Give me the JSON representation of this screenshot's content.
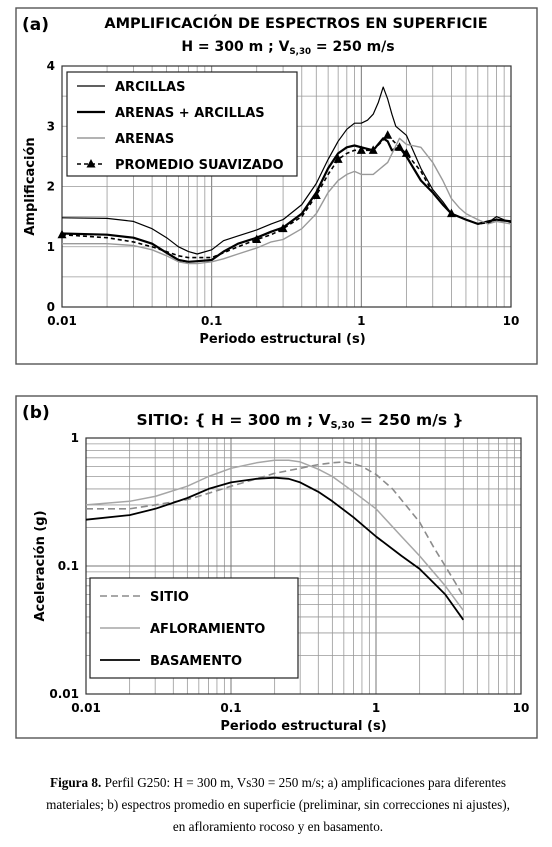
{
  "chart_data": [
    {
      "type": "line",
      "panel_label": "(a)",
      "title": "AMPLIFICACIÓN DE ESPECTROS EN SUPERFICIE",
      "subtitle": "H = 300 m ; Vs,30 = 250 m/s",
      "subtitle_parts": {
        "lead": "H = 300 m  ;  V",
        "sub": "S,30",
        "tail": " =  250 m/s"
      },
      "xlabel": "Periodo estructural (s)",
      "ylabel": "Amplificación",
      "xscale": "log",
      "xlim": [
        0.01,
        10
      ],
      "ylim": [
        0,
        4
      ],
      "xticks": [
        {
          "v": 0.01,
          "label": "0.01"
        },
        {
          "v": 0.1,
          "label": "0.1"
        },
        {
          "v": 1,
          "label": "1"
        },
        {
          "v": 10,
          "label": "10"
        }
      ],
      "yticks": [
        {
          "v": 0,
          "label": "0"
        },
        {
          "v": 1,
          "label": "1"
        },
        {
          "v": 2,
          "label": "2"
        },
        {
          "v": 3,
          "label": "3"
        },
        {
          "v": 4,
          "label": "4"
        }
      ],
      "grid": true,
      "legend_position": "top-left",
      "series": [
        {
          "name": "ARCILLAS",
          "color": "#000000",
          "width": 1.2,
          "dash": "",
          "marker": "none",
          "x": [
            0.01,
            0.02,
            0.03,
            0.04,
            0.05,
            0.06,
            0.07,
            0.08,
            0.1,
            0.12,
            0.15,
            0.2,
            0.25,
            0.3,
            0.4,
            0.5,
            0.6,
            0.7,
            0.8,
            0.9,
            1.0,
            1.1,
            1.2,
            1.3,
            1.4,
            1.5,
            1.6,
            1.7,
            2.0,
            2.5,
            3.0,
            3.5,
            4.0,
            5.0,
            6.0,
            7.0,
            8.0,
            10.0
          ],
          "y": [
            1.48,
            1.47,
            1.42,
            1.3,
            1.15,
            1.0,
            0.92,
            0.88,
            0.95,
            1.1,
            1.18,
            1.28,
            1.38,
            1.45,
            1.7,
            2.05,
            2.45,
            2.75,
            2.95,
            3.05,
            3.05,
            3.1,
            3.2,
            3.4,
            3.65,
            3.45,
            3.2,
            3.0,
            2.85,
            2.3,
            1.95,
            1.75,
            1.55,
            1.45,
            1.38,
            1.4,
            1.5,
            1.4
          ]
        },
        {
          "name": "ARENAS + ARCILLAS",
          "color": "#000000",
          "width": 2.2,
          "dash": "",
          "marker": "none",
          "x": [
            0.01,
            0.02,
            0.03,
            0.04,
            0.05,
            0.06,
            0.07,
            0.08,
            0.1,
            0.12,
            0.15,
            0.2,
            0.25,
            0.3,
            0.4,
            0.5,
            0.6,
            0.7,
            0.8,
            0.9,
            1.0,
            1.2,
            1.4,
            1.5,
            1.6,
            1.8,
            2.0,
            2.5,
            3.0,
            3.5,
            4.0,
            5.0,
            6.0,
            7.0,
            8.0,
            10.0
          ],
          "y": [
            1.22,
            1.2,
            1.15,
            1.05,
            0.9,
            0.78,
            0.75,
            0.76,
            0.78,
            0.92,
            1.05,
            1.15,
            1.25,
            1.32,
            1.55,
            1.9,
            2.3,
            2.55,
            2.65,
            2.68,
            2.65,
            2.6,
            2.8,
            2.75,
            2.6,
            2.65,
            2.5,
            2.1,
            1.9,
            1.7,
            1.55,
            1.45,
            1.38,
            1.42,
            1.45,
            1.42
          ]
        },
        {
          "name": "ARENAS",
          "color": "#9a9a9a",
          "width": 1.4,
          "dash": "",
          "marker": "none",
          "x": [
            0.01,
            0.02,
            0.03,
            0.04,
            0.05,
            0.06,
            0.07,
            0.08,
            0.1,
            0.12,
            0.15,
            0.2,
            0.25,
            0.3,
            0.4,
            0.5,
            0.6,
            0.7,
            0.8,
            0.9,
            1.0,
            1.2,
            1.5,
            1.8,
            2.0,
            2.5,
            3.0,
            3.5,
            4.0,
            4.5,
            5.0,
            6.0,
            7.0,
            8.0,
            10.0
          ],
          "y": [
            1.05,
            1.05,
            1.02,
            0.95,
            0.85,
            0.75,
            0.72,
            0.72,
            0.75,
            0.8,
            0.88,
            0.98,
            1.08,
            1.12,
            1.3,
            1.55,
            1.9,
            2.1,
            2.2,
            2.25,
            2.2,
            2.2,
            2.4,
            2.8,
            2.7,
            2.65,
            2.4,
            2.1,
            1.8,
            1.65,
            1.55,
            1.45,
            1.38,
            1.42,
            1.38
          ]
        },
        {
          "name": "PROMEDIO SUAVIZADO",
          "color": "#000000",
          "width": 1.6,
          "dash": "4,3",
          "marker": "triangle",
          "x": [
            0.01,
            0.02,
            0.03,
            0.04,
            0.05,
            0.06,
            0.07,
            0.08,
            0.1,
            0.12,
            0.15,
            0.2,
            0.25,
            0.3,
            0.4,
            0.5,
            0.6,
            0.7,
            0.8,
            0.9,
            1.0,
            1.2,
            1.5,
            1.8,
            2.0,
            2.5,
            3.0,
            3.5,
            4.0,
            5.0,
            6.0,
            7.0,
            8.0,
            10.0
          ],
          "y": [
            1.2,
            1.15,
            1.08,
            1.0,
            0.92,
            0.85,
            0.82,
            0.82,
            0.82,
            0.9,
            1.0,
            1.12,
            1.2,
            1.3,
            1.5,
            1.85,
            2.2,
            2.45,
            2.55,
            2.6,
            2.6,
            2.6,
            2.85,
            2.65,
            2.55,
            2.25,
            1.9,
            1.7,
            1.55,
            1.45,
            1.38,
            1.4,
            1.45,
            1.42
          ],
          "marker_x": [
            0.01,
            0.2,
            0.3,
            0.5,
            0.7,
            1.0,
            1.2,
            1.5,
            1.8,
            2.0,
            4.0
          ],
          "marker_y": [
            1.2,
            1.12,
            1.3,
            1.85,
            2.45,
            2.6,
            2.6,
            2.85,
            2.65,
            2.55,
            1.55
          ]
        }
      ]
    },
    {
      "type": "line",
      "panel_label": "(b)",
      "title": "SITIO: { H = 300 m ; Vs,30 = 250 m/s }",
      "title_parts": {
        "lead": "SITIO: { H = 300 m ; V",
        "sub": "S,30",
        "tail": " = 250 m/s }"
      },
      "xlabel": "Periodo estructural (s)",
      "ylabel": "Aceleración (g)",
      "xscale": "log",
      "yscale": "log",
      "xlim": [
        0.01,
        10
      ],
      "ylim": [
        0.01,
        1
      ],
      "xticks": [
        {
          "v": 0.01,
          "label": "0.01"
        },
        {
          "v": 0.1,
          "label": "0.1"
        },
        {
          "v": 1,
          "label": "1"
        },
        {
          "v": 10,
          "label": "10"
        }
      ],
      "yticks": [
        {
          "v": 0.01,
          "label": "0.01"
        },
        {
          "v": 0.1,
          "label": "0.1"
        },
        {
          "v": 1,
          "label": "1"
        }
      ],
      "grid": true,
      "legend_position": "bottom-left",
      "series": [
        {
          "name": "SITIO",
          "color": "#8c8c8c",
          "width": 1.6,
          "dash": "7,4",
          "marker": "none",
          "x": [
            0.01,
            0.02,
            0.03,
            0.05,
            0.07,
            0.1,
            0.15,
            0.2,
            0.3,
            0.4,
            0.5,
            0.6,
            0.7,
            0.8,
            1.0,
            1.3,
            1.6,
            2.0,
            2.5,
            3.0,
            3.5,
            4.0
          ],
          "y": [
            0.28,
            0.28,
            0.3,
            0.33,
            0.37,
            0.42,
            0.48,
            0.53,
            0.58,
            0.62,
            0.64,
            0.65,
            0.63,
            0.6,
            0.52,
            0.4,
            0.3,
            0.22,
            0.14,
            0.1,
            0.075,
            0.058
          ]
        },
        {
          "name": "AFLORAMIENTO",
          "color": "#a6a6a6",
          "width": 1.5,
          "dash": "",
          "marker": "none",
          "x": [
            0.01,
            0.02,
            0.03,
            0.05,
            0.07,
            0.1,
            0.15,
            0.2,
            0.25,
            0.3,
            0.4,
            0.5,
            0.7,
            1.0,
            1.5,
            2.0,
            3.0,
            4.0
          ],
          "y": [
            0.3,
            0.32,
            0.35,
            0.42,
            0.5,
            0.58,
            0.64,
            0.67,
            0.67,
            0.65,
            0.57,
            0.5,
            0.38,
            0.28,
            0.17,
            0.12,
            0.07,
            0.045
          ]
        },
        {
          "name": "BASAMENTO",
          "color": "#000000",
          "width": 1.8,
          "dash": "",
          "marker": "none",
          "x": [
            0.01,
            0.02,
            0.03,
            0.05,
            0.07,
            0.1,
            0.15,
            0.2,
            0.25,
            0.3,
            0.4,
            0.5,
            0.7,
            1.0,
            1.5,
            2.0,
            3.0,
            4.0
          ],
          "y": [
            0.23,
            0.25,
            0.28,
            0.34,
            0.4,
            0.45,
            0.48,
            0.49,
            0.48,
            0.45,
            0.38,
            0.32,
            0.24,
            0.17,
            0.12,
            0.095,
            0.06,
            0.038
          ]
        }
      ]
    }
  ],
  "caption": {
    "label": "Figura 8.",
    "line1": " Perfil G250: H = 300 m, Vs30 = 250 m/s; a) amplificaciones para diferentes",
    "line2": "materiales; b) espectros promedio en superficie (preliminar, sin correcciones ni ajustes),",
    "line3": "en afloramiento rocoso y en basamento."
  }
}
